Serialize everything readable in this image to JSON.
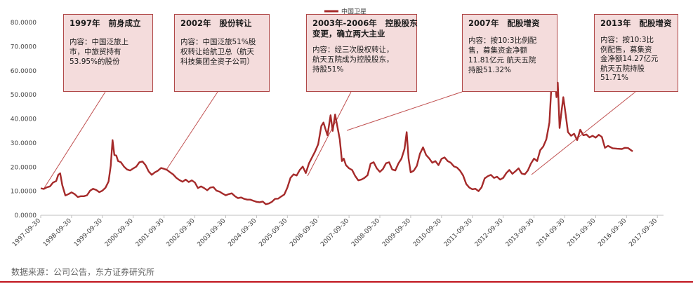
{
  "chart_data": {
    "type": "line",
    "legend": {
      "label": "中国卫星",
      "placement": "top-center"
    },
    "ylim": [
      0,
      80
    ],
    "y_ticks": [
      "0.0000",
      "10.0000",
      "20.0000",
      "30.0000",
      "40.0000",
      "50.0000",
      "60.0000",
      "70.0000",
      "80.0000"
    ],
    "x_ticks": [
      "1997-09-30",
      "1998-09-30",
      "1999-09-30",
      "2000-09-30",
      "2001-09-30",
      "2002-09-30",
      "2003-09-30",
      "2004-09-30",
      "2005-09-30",
      "2006-09-30",
      "2007-09-30",
      "2008-09-30",
      "2009-09-30",
      "2010-09-30",
      "2011-09-30",
      "2012-09-30",
      "2013-09-30",
      "2014-09-30",
      "2015-09-30",
      "2016-09-30",
      "2017-09-30"
    ],
    "xlim": [
      1997.75,
      2017.95
    ],
    "line_color": "#a52a2a",
    "series": [
      {
        "name": "中国卫星",
        "points": [
          [
            1997.75,
            11.2
          ],
          [
            1997.85,
            10.9
          ],
          [
            1997.95,
            11.6
          ],
          [
            1998.05,
            12.0
          ],
          [
            1998.15,
            13.6
          ],
          [
            1998.25,
            14.2
          ],
          [
            1998.32,
            16.8
          ],
          [
            1998.38,
            17.4
          ],
          [
            1998.45,
            12.5
          ],
          [
            1998.55,
            8.2
          ],
          [
            1998.65,
            8.8
          ],
          [
            1998.75,
            9.5
          ],
          [
            1998.85,
            8.8
          ],
          [
            1998.95,
            7.6
          ],
          [
            1999.05,
            7.9
          ],
          [
            1999.15,
            7.9
          ],
          [
            1999.25,
            8.3
          ],
          [
            1999.35,
            10.2
          ],
          [
            1999.45,
            11.0
          ],
          [
            1999.55,
            10.5
          ],
          [
            1999.65,
            9.6
          ],
          [
            1999.75,
            10.2
          ],
          [
            1999.85,
            11.4
          ],
          [
            1999.95,
            14.0
          ],
          [
            2000.02,
            20.5
          ],
          [
            2000.08,
            31.2
          ],
          [
            2000.14,
            25.0
          ],
          [
            2000.2,
            24.8
          ],
          [
            2000.26,
            22.5
          ],
          [
            2000.35,
            22.0
          ],
          [
            2000.45,
            20.2
          ],
          [
            2000.55,
            19.0
          ],
          [
            2000.65,
            18.6
          ],
          [
            2000.75,
            19.4
          ],
          [
            2000.85,
            20.2
          ],
          [
            2000.95,
            22.0
          ],
          [
            2001.05,
            22.3
          ],
          [
            2001.15,
            20.8
          ],
          [
            2001.25,
            18.2
          ],
          [
            2001.35,
            16.8
          ],
          [
            2001.45,
            17.8
          ],
          [
            2001.55,
            18.5
          ],
          [
            2001.65,
            19.6
          ],
          [
            2001.75,
            19.3
          ],
          [
            2001.85,
            18.8
          ],
          [
            2001.95,
            17.8
          ],
          [
            2002.05,
            16.9
          ],
          [
            2002.15,
            15.5
          ],
          [
            2002.25,
            14.6
          ],
          [
            2002.35,
            13.9
          ],
          [
            2002.45,
            14.8
          ],
          [
            2002.55,
            13.8
          ],
          [
            2002.65,
            14.5
          ],
          [
            2002.75,
            13.6
          ],
          [
            2002.85,
            11.3
          ],
          [
            2002.95,
            12.0
          ],
          [
            2003.05,
            11.3
          ],
          [
            2003.15,
            10.4
          ],
          [
            2003.25,
            11.5
          ],
          [
            2003.35,
            11.7
          ],
          [
            2003.45,
            10.2
          ],
          [
            2003.55,
            9.8
          ],
          [
            2003.65,
            9.0
          ],
          [
            2003.75,
            8.3
          ],
          [
            2003.85,
            8.8
          ],
          [
            2003.95,
            9.1
          ],
          [
            2004.05,
            7.9
          ],
          [
            2004.15,
            7.1
          ],
          [
            2004.25,
            7.4
          ],
          [
            2004.35,
            6.8
          ],
          [
            2004.45,
            6.5
          ],
          [
            2004.55,
            6.5
          ],
          [
            2004.65,
            6.0
          ],
          [
            2004.75,
            5.6
          ],
          [
            2004.85,
            5.4
          ],
          [
            2004.95,
            5.7
          ],
          [
            2005.05,
            4.6
          ],
          [
            2005.15,
            4.9
          ],
          [
            2005.25,
            5.6
          ],
          [
            2005.35,
            6.8
          ],
          [
            2005.45,
            6.9
          ],
          [
            2005.55,
            7.8
          ],
          [
            2005.65,
            8.6
          ],
          [
            2005.75,
            11.5
          ],
          [
            2005.85,
            15.5
          ],
          [
            2005.95,
            17.0
          ],
          [
            2006.05,
            16.5
          ],
          [
            2006.15,
            18.8
          ],
          [
            2006.25,
            20.2
          ],
          [
            2006.35,
            17.5
          ],
          [
            2006.45,
            21.5
          ],
          [
            2006.55,
            24.0
          ],
          [
            2006.65,
            26.5
          ],
          [
            2006.75,
            29.5
          ],
          [
            2006.85,
            37.0
          ],
          [
            2006.92,
            38.5
          ],
          [
            2006.98,
            36.0
          ],
          [
            2007.05,
            33.2
          ],
          [
            2007.15,
            41.5
          ],
          [
            2007.22,
            35.0
          ],
          [
            2007.3,
            41.8
          ],
          [
            2007.38,
            36.2
          ],
          [
            2007.45,
            31.5
          ],
          [
            2007.52,
            22.5
          ],
          [
            2007.58,
            23.5
          ],
          [
            2007.65,
            20.8
          ],
          [
            2007.75,
            19.5
          ],
          [
            2007.85,
            18.8
          ],
          [
            2007.95,
            16.3
          ],
          [
            2008.05,
            14.5
          ],
          [
            2008.15,
            14.8
          ],
          [
            2008.25,
            15.5
          ],
          [
            2008.35,
            16.6
          ],
          [
            2008.45,
            21.4
          ],
          [
            2008.55,
            22.0
          ],
          [
            2008.65,
            19.5
          ],
          [
            2008.75,
            18.0
          ],
          [
            2008.85,
            19.2
          ],
          [
            2008.95,
            21.6
          ],
          [
            2009.05,
            22.0
          ],
          [
            2009.15,
            19.0
          ],
          [
            2009.25,
            18.6
          ],
          [
            2009.35,
            21.5
          ],
          [
            2009.45,
            23.5
          ],
          [
            2009.55,
            27.5
          ],
          [
            2009.62,
            34.5
          ],
          [
            2009.68,
            23.5
          ],
          [
            2009.75,
            17.8
          ],
          [
            2009.85,
            18.5
          ],
          [
            2009.95,
            20.5
          ],
          [
            2010.05,
            25.5
          ],
          [
            2010.15,
            28.2
          ],
          [
            2010.25,
            25.0
          ],
          [
            2010.35,
            23.6
          ],
          [
            2010.45,
            21.8
          ],
          [
            2010.55,
            22.5
          ],
          [
            2010.65,
            20.8
          ],
          [
            2010.75,
            23.4
          ],
          [
            2010.85,
            24.0
          ],
          [
            2010.95,
            22.5
          ],
          [
            2011.05,
            21.8
          ],
          [
            2011.15,
            20.3
          ],
          [
            2011.25,
            19.8
          ],
          [
            2011.35,
            18.5
          ],
          [
            2011.45,
            16.5
          ],
          [
            2011.55,
            13.0
          ],
          [
            2011.65,
            11.5
          ],
          [
            2011.75,
            10.8
          ],
          [
            2011.85,
            11.0
          ],
          [
            2011.95,
            10.0
          ],
          [
            2012.05,
            11.6
          ],
          [
            2012.15,
            15.3
          ],
          [
            2012.25,
            16.2
          ],
          [
            2012.35,
            16.8
          ],
          [
            2012.45,
            15.5
          ],
          [
            2012.55,
            16.0
          ],
          [
            2012.65,
            14.8
          ],
          [
            2012.75,
            15.5
          ],
          [
            2012.85,
            17.5
          ],
          [
            2012.95,
            18.8
          ],
          [
            2013.05,
            17.2
          ],
          [
            2013.15,
            18.3
          ],
          [
            2013.25,
            19.5
          ],
          [
            2013.35,
            17.3
          ],
          [
            2013.45,
            17.0
          ],
          [
            2013.55,
            18.6
          ],
          [
            2013.65,
            21.5
          ],
          [
            2013.75,
            23.5
          ],
          [
            2013.85,
            22.5
          ],
          [
            2013.95,
            27.0
          ],
          [
            2014.05,
            28.5
          ],
          [
            2014.15,
            31.5
          ],
          [
            2014.25,
            38.5
          ],
          [
            2014.32,
            55.0
          ],
          [
            2014.38,
            67.4
          ],
          [
            2014.43,
            56.0
          ],
          [
            2014.48,
            49.0
          ],
          [
            2014.52,
            55.0
          ],
          [
            2014.58,
            36.2
          ],
          [
            2014.65,
            44.0
          ],
          [
            2014.7,
            49.0
          ],
          [
            2014.78,
            41.5
          ],
          [
            2014.85,
            34.5
          ],
          [
            2014.95,
            33.0
          ],
          [
            2015.05,
            33.8
          ],
          [
            2015.15,
            31.2
          ],
          [
            2015.25,
            35.5
          ],
          [
            2015.35,
            33.2
          ],
          [
            2015.45,
            33.5
          ],
          [
            2015.55,
            32.3
          ],
          [
            2015.65,
            33.0
          ],
          [
            2015.75,
            32.2
          ],
          [
            2015.85,
            33.4
          ],
          [
            2015.95,
            32.5
          ],
          [
            2016.05,
            28.0
          ],
          [
            2016.15,
            28.8
          ],
          [
            2016.3,
            27.8
          ],
          [
            2016.45,
            27.6
          ],
          [
            2016.6,
            27.5
          ],
          [
            2016.7,
            28.0
          ],
          [
            2016.8,
            27.9
          ],
          [
            2016.95,
            26.5
          ]
        ]
      }
    ]
  },
  "annotations": [
    {
      "title": "1997年   前身成立",
      "text": "内容：中国泛旅上\n市，中旅贸持有\n53.95%的股份"
    },
    {
      "title": "2002年   股份转让",
      "text": "内容：中国泛旅51%股\n权转让给航卫总（航天\n科技集团全资子公司）"
    },
    {
      "title": "2003年-2006年   控股股东\n变更，确立两大主业",
      "text": "内容：经三次股权转让，\n航天五院成为控股股东，\n持股51%"
    },
    {
      "title": "2007年   配股增资",
      "text": "内容：按10:3比例配\n售，募集资金净额\n11.81亿元 航天五院\n持股51.32%"
    },
    {
      "title": "2013年   配股增资",
      "text": "内容：按10:3比\n例配售，募集资\n金净额14.27亿元\n航天五院持股\n51.71%"
    }
  ],
  "source": "数据来源：公司公告，东方证券研究所"
}
